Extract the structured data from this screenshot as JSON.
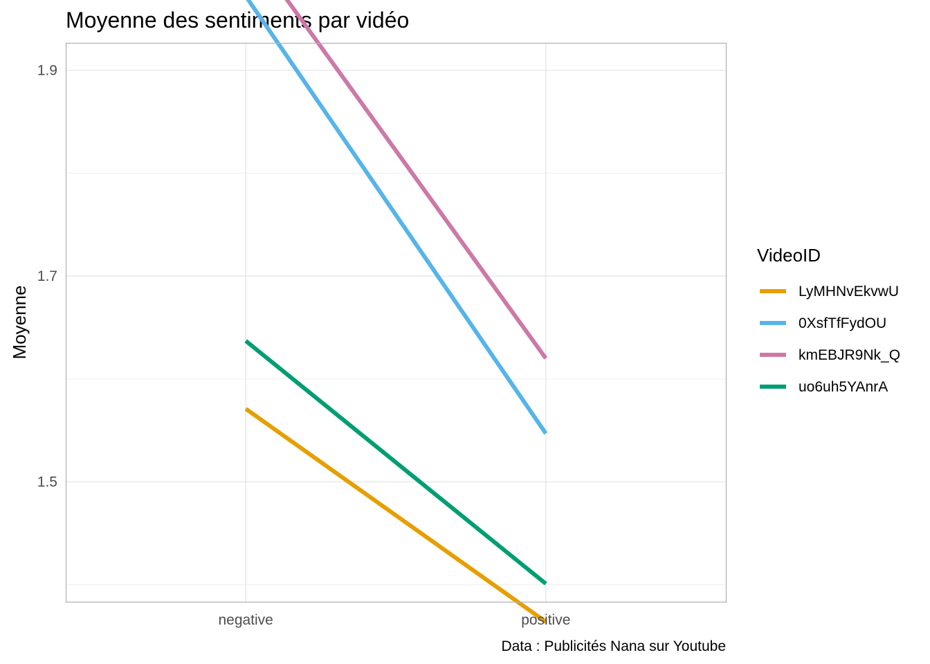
{
  "chart_data": {
    "type": "line",
    "title": "Moyenne des sentiments par vidéo",
    "xlabel": "",
    "ylabel": "Moyenne",
    "caption": "Data : Publicités Nana sur Youtube",
    "categories": [
      "negative",
      "positive"
    ],
    "ylim": [
      1.3835,
      1.9266
    ],
    "y_ticks": [
      1.5,
      1.7,
      1.9
    ],
    "y_tick_labels": [
      "1.5",
      "1.7",
      "1.9"
    ],
    "grid": true,
    "legend": {
      "title": "VideoID",
      "placement": "right"
    },
    "series": [
      {
        "name": "LyMHNvEkvwU",
        "color": "#E69F00",
        "values": [
          1.571,
          1.364
        ]
      },
      {
        "name": "0XsfTfFydOU",
        "color": "#56B4E9",
        "values": [
          1.972,
          1.547
        ]
      },
      {
        "name": "kmEBJR9Nk_Q",
        "color": "#CC79A7",
        "values": [
          2.024,
          1.62
        ]
      },
      {
        "name": "uo6uh5YAnrA",
        "color": "#009E73",
        "values": [
          1.637,
          1.401
        ]
      }
    ]
  }
}
